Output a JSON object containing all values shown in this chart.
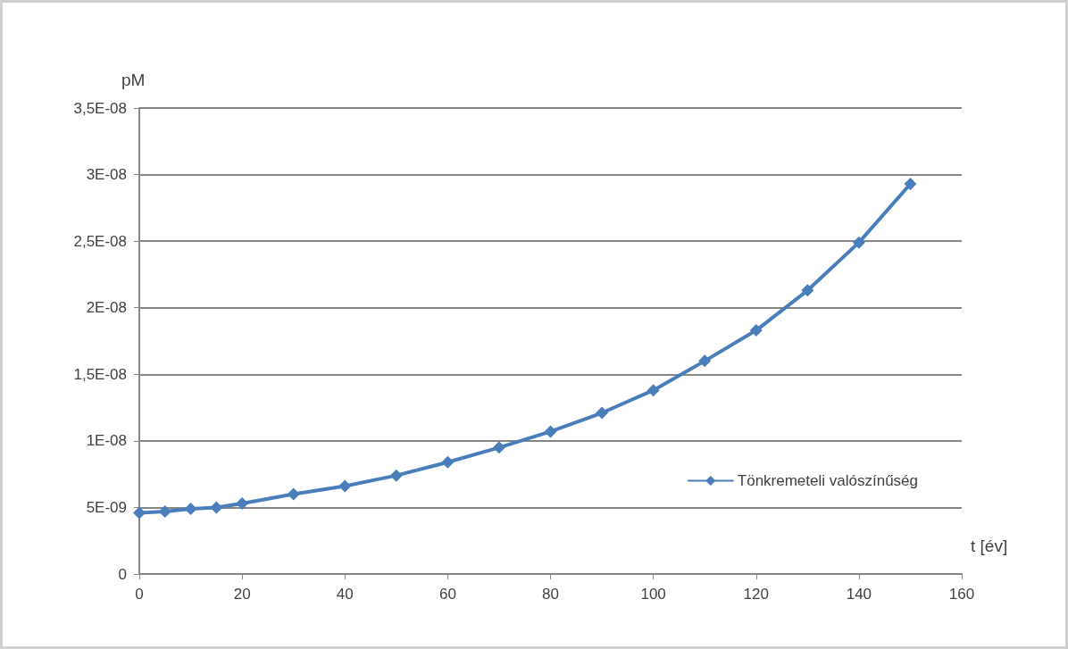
{
  "chart_data": {
    "type": "line",
    "xlabel": "t [év]",
    "ylabel": "pM",
    "x": [
      0,
      5,
      10,
      15,
      20,
      30,
      40,
      50,
      60,
      70,
      80,
      90,
      100,
      110,
      120,
      130,
      140,
      150
    ],
    "series": [
      {
        "name": "Tönkremeteli valószínűség",
        "color": "#4a7ebb",
        "values": [
          4.6e-09,
          4.7e-09,
          4.9e-09,
          5e-09,
          5.3e-09,
          6e-09,
          6.6e-09,
          7.4e-09,
          8.4e-09,
          9.5e-09,
          1.07e-08,
          1.21e-08,
          1.38e-08,
          1.6e-08,
          1.83e-08,
          2.13e-08,
          2.49e-08,
          2.93e-08
        ]
      }
    ],
    "xlim": [
      0,
      160
    ],
    "xticks": [
      0,
      20,
      40,
      60,
      80,
      100,
      120,
      140,
      160
    ],
    "ylim": [
      0,
      3.5e-08
    ],
    "yticks": [
      0,
      {
        "value": 5e-09,
        "label": "5E-09"
      },
      {
        "value": 1e-08,
        "label": "1E-08"
      },
      {
        "value": 1.5e-08,
        "label": "1,5E-08"
      },
      {
        "value": 2e-08,
        "label": "2E-08"
      },
      {
        "value": 2.5e-08,
        "label": "2,5E-08"
      },
      {
        "value": 3e-08,
        "label": "3E-08"
      },
      {
        "value": 3.5e-08,
        "label": "3,5E-08"
      }
    ],
    "grid": "y",
    "legend": "right",
    "marker": "diamond",
    "line_style": "solid"
  }
}
